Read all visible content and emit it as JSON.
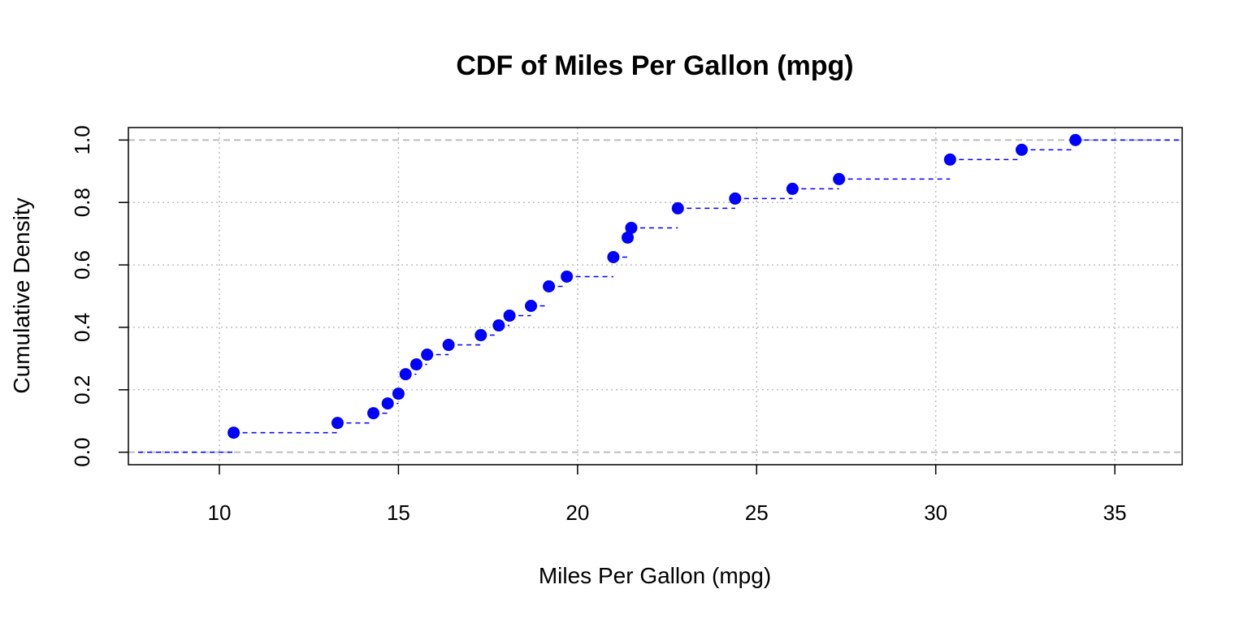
{
  "chart_data": {
    "type": "line",
    "subtype": "step-ecdf",
    "title": "CDF of Miles Per Gallon (mpg)",
    "xlabel": "Miles Per Gallon (mpg)",
    "ylabel": "Cumulative Density",
    "xlim": [
      7.46,
      36.88
    ],
    "ylim": [
      -0.04,
      1.04
    ],
    "xticks": [
      10,
      15,
      20,
      25,
      30,
      35
    ],
    "yticks": [
      0.0,
      0.2,
      0.4,
      0.6,
      0.8,
      1.0
    ],
    "xtick_labels": [
      "10",
      "15",
      "20",
      "25",
      "30",
      "35"
    ],
    "ytick_labels": [
      "0.0",
      "0.2",
      "0.4",
      "0.6",
      "0.8",
      "1.0"
    ],
    "grid": true,
    "x": [
      10.4,
      13.3,
      14.3,
      14.7,
      15.0,
      15.2,
      15.5,
      15.8,
      16.4,
      17.3,
      17.8,
      18.1,
      18.7,
      19.2,
      19.7,
      21.0,
      21.4,
      21.5,
      22.8,
      24.4,
      26.0,
      27.3,
      30.4,
      32.4,
      33.9
    ],
    "y": [
      0.0625,
      0.09375,
      0.125,
      0.15625,
      0.1875,
      0.25,
      0.28125,
      0.3125,
      0.34375,
      0.375,
      0.40625,
      0.4375,
      0.46875,
      0.53125,
      0.5625,
      0.625,
      0.6875,
      0.71875,
      0.78125,
      0.8125,
      0.84375,
      0.875,
      0.9375,
      0.96875,
      1.0
    ],
    "colors": {
      "series": "#0000ff",
      "grid": "#bebebe",
      "axis": "#000000"
    }
  }
}
